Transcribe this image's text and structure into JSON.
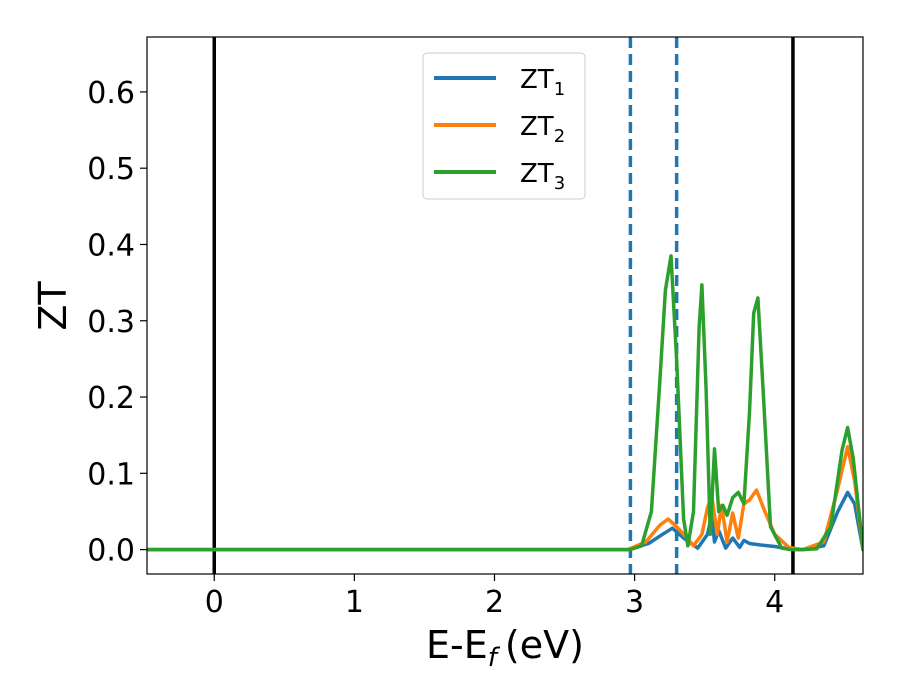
{
  "chart_data": {
    "type": "line",
    "xlabel": "E-E",
    "xlabel_sub": "f",
    "xlabel_unit": "(eV)",
    "ylabel": "ZT",
    "xlim": [
      -0.48,
      4.63
    ],
    "ylim": [
      -0.032,
      0.672
    ],
    "xticks": [
      0,
      1,
      2,
      3,
      4
    ],
    "xtick_labels": [
      "0",
      "1",
      "2",
      "3",
      "4"
    ],
    "yticks": [
      0.0,
      0.1,
      0.2,
      0.3,
      0.4,
      0.5,
      0.6
    ],
    "ytick_labels": [
      "0.0",
      "0.1",
      "0.2",
      "0.3",
      "0.4",
      "0.5",
      "0.6"
    ],
    "legend_position": "top-center",
    "vertical_lines": [
      {
        "x": 0.0,
        "style": "solid",
        "color": "#000000"
      },
      {
        "x": 4.13,
        "style": "solid",
        "color": "#000000"
      },
      {
        "x": 2.97,
        "style": "dashed",
        "color": "#1f77b4"
      },
      {
        "x": 3.3,
        "style": "dashed",
        "color": "#1f77b4"
      }
    ],
    "series": [
      {
        "name": "ZT",
        "name_sub": "1",
        "color": "#1f77b4",
        "x": [
          -0.48,
          2.95,
          3.1,
          3.2,
          3.27,
          3.35,
          3.45,
          3.52,
          3.55,
          3.57,
          3.6,
          3.65,
          3.7,
          3.75,
          3.78,
          3.82,
          3.9,
          4.0,
          4.1,
          4.2,
          4.35,
          4.45,
          4.52,
          4.57,
          4.63
        ],
        "y": [
          0.0,
          0.0,
          0.008,
          0.02,
          0.028,
          0.015,
          0.002,
          0.02,
          0.045,
          0.01,
          0.025,
          0.002,
          0.015,
          0.003,
          0.012,
          0.008,
          0.006,
          0.004,
          0.001,
          0.0,
          0.005,
          0.05,
          0.075,
          0.06,
          0.0
        ]
      },
      {
        "name": "ZT",
        "name_sub": "2",
        "color": "#ff7f0e",
        "x": [
          -0.48,
          2.95,
          3.08,
          3.18,
          3.24,
          3.3,
          3.36,
          3.42,
          3.48,
          3.52,
          3.55,
          3.59,
          3.62,
          3.66,
          3.7,
          3.74,
          3.78,
          3.82,
          3.87,
          3.93,
          4.0,
          4.1,
          4.2,
          4.35,
          4.45,
          4.52,
          4.57,
          4.63
        ],
        "y": [
          0.0,
          0.0,
          0.01,
          0.032,
          0.04,
          0.03,
          0.018,
          0.005,
          0.02,
          0.055,
          0.07,
          0.02,
          0.058,
          0.01,
          0.048,
          0.015,
          0.06,
          0.065,
          0.078,
          0.05,
          0.02,
          0.003,
          0.0,
          0.01,
          0.08,
          0.135,
          0.09,
          0.0
        ]
      },
      {
        "name": "ZT",
        "name_sub": "3",
        "color": "#2ca02c",
        "x": [
          -0.48,
          2.97,
          3.05,
          3.12,
          3.18,
          3.22,
          3.26,
          3.3,
          3.35,
          3.38,
          3.42,
          3.46,
          3.48,
          3.51,
          3.54,
          3.57,
          3.6,
          3.63,
          3.66,
          3.7,
          3.74,
          3.78,
          3.82,
          3.85,
          3.88,
          3.92,
          3.97,
          4.05,
          4.12,
          4.2,
          4.3,
          4.4,
          4.48,
          4.52,
          4.56,
          4.63
        ],
        "y": [
          0.0,
          0.0,
          0.005,
          0.05,
          0.22,
          0.34,
          0.385,
          0.25,
          0.04,
          0.005,
          0.05,
          0.29,
          0.347,
          0.21,
          0.02,
          0.132,
          0.05,
          0.058,
          0.045,
          0.068,
          0.075,
          0.06,
          0.18,
          0.31,
          0.33,
          0.2,
          0.03,
          0.002,
          0.0,
          0.0,
          0.001,
          0.03,
          0.13,
          0.16,
          0.12,
          0.0
        ]
      }
    ]
  }
}
